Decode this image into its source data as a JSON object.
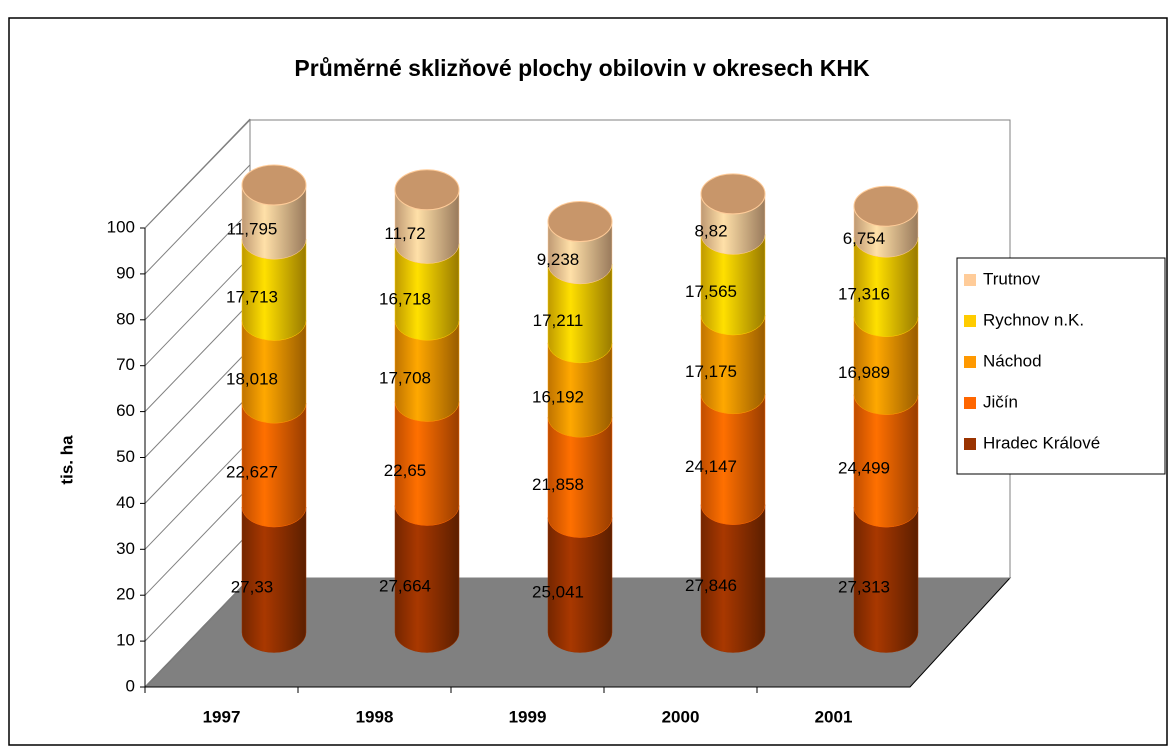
{
  "chart_data": {
    "type": "bar3d_stacked_cylinder",
    "title": "Průměrné sklizňové plochy obilovin v okresech KHK",
    "y_label": "tis. ha",
    "categories": [
      "1997",
      "1998",
      "1999",
      "2000",
      "2001"
    ],
    "ylim": [
      0,
      100
    ],
    "yticks": [
      0,
      10,
      20,
      30,
      40,
      50,
      60,
      70,
      80,
      90,
      100
    ],
    "grid": true,
    "legend": "right",
    "series": [
      {
        "name": "Hradec Králové",
        "color": "#9a3300",
        "label_color": "#ffff00",
        "values": [
          27.33,
          27.664,
          25.041,
          27.846,
          27.313
        ],
        "value_labels": [
          "27,33",
          "27,664",
          "25,041",
          "27,846",
          "27,313"
        ]
      },
      {
        "name": "Jičín",
        "color": "#ff6600",
        "label_color": "#000000",
        "values": [
          22.627,
          22.65,
          21.858,
          24.147,
          24.499
        ],
        "value_labels": [
          "22,627",
          "22,65",
          "21,858",
          "24,147",
          "24,499"
        ]
      },
      {
        "name": "Náchod",
        "color": "#ff9900",
        "label_color": "#000000",
        "values": [
          18.018,
          17.708,
          16.192,
          17.175,
          16.989
        ],
        "value_labels": [
          "18,018",
          "17,708",
          "16,192",
          "17,175",
          "16,989"
        ]
      },
      {
        "name": "Rychnov n.K.",
        "color": "#ffcc00",
        "label_color": "#000000",
        "values": [
          17.713,
          16.718,
          17.211,
          17.565,
          17.316
        ],
        "value_labels": [
          "17,713",
          "16,718",
          "17,211",
          "17,565",
          "17,316"
        ]
      },
      {
        "name": "Trutnov",
        "color": "#ffcc99",
        "label_color": "#000000",
        "values": [
          11.795,
          11.72,
          9.238,
          8.82,
          6.754
        ],
        "value_labels": [
          "11,795",
          "11,72",
          "9,238",
          "8,82",
          "6,754"
        ]
      }
    ]
  }
}
